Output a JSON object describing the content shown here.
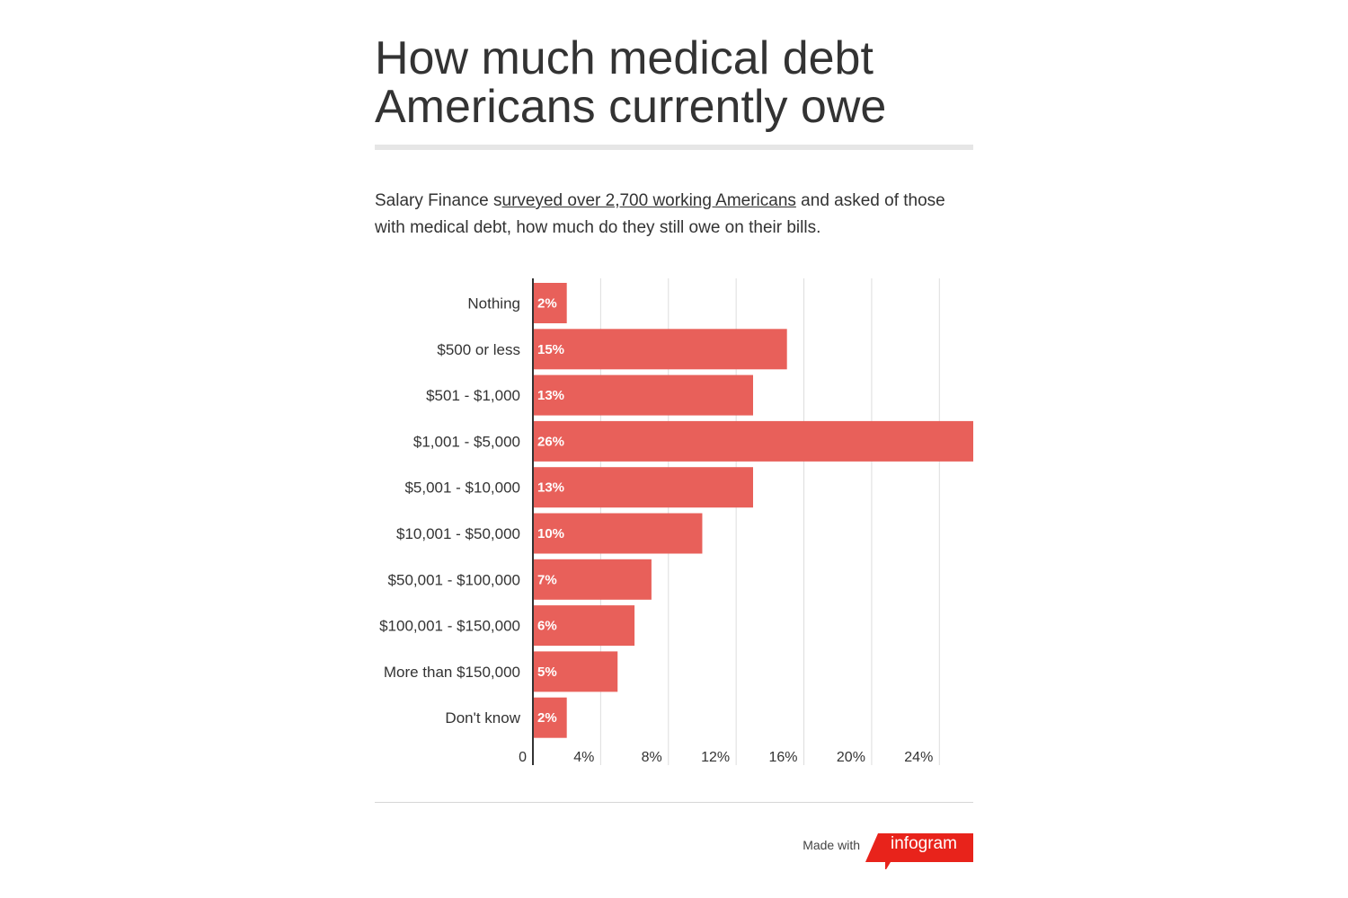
{
  "title_lines": [
    "How much medical debt",
    "Americans currently owe"
  ],
  "description": {
    "before": "Salary Finance s",
    "link": "urveyed over 2,700 working Americans",
    "after": " and asked of those with medical debt, how much do they still owe on their bills."
  },
  "footer": {
    "made_with": "Made with",
    "brand": "infogram"
  },
  "colors": {
    "bar": "#e8605a",
    "axis": "#333333",
    "grid": "#dddddd",
    "brand": "#e8231b"
  },
  "chart_data": {
    "type": "bar",
    "orientation": "horizontal",
    "categories": [
      "Nothing",
      "$500 or less",
      "$501 - $1,000",
      "$1,001 - $5,000",
      "$5,001 - $10,000",
      "$10,001 - $50,000",
      "$50,001 - $100,000",
      "$100,001 - $150,000",
      "More than $150,000",
      "Don't know"
    ],
    "values": [
      2,
      15,
      13,
      26,
      13,
      10,
      7,
      6,
      5,
      2
    ],
    "value_labels": [
      "2%",
      "15%",
      "13%",
      "26%",
      "13%",
      "10%",
      "7%",
      "6%",
      "5%",
      "2%"
    ],
    "x_ticks": [
      0,
      4,
      8,
      12,
      16,
      20,
      24
    ],
    "x_tick_labels": [
      "0",
      "4%",
      "8%",
      "12%",
      "16%",
      "20%",
      "24%"
    ],
    "xlim": [
      0,
      26
    ],
    "grid": true
  }
}
